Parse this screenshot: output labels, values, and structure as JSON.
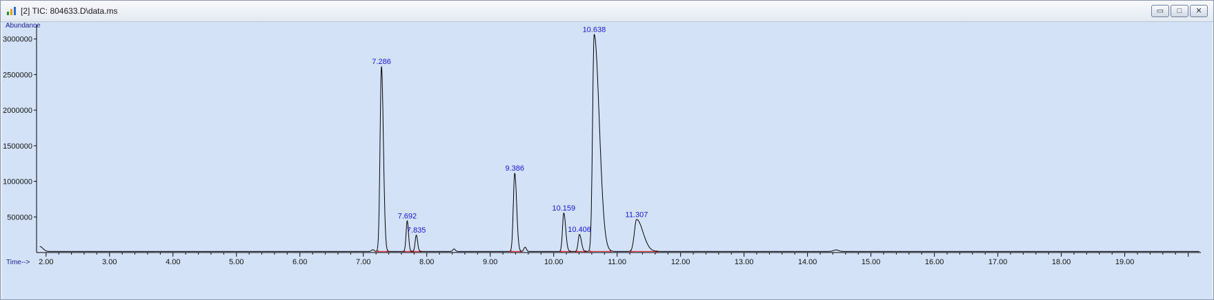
{
  "window": {
    "title": "[2] TIC: 804633.D\\data.ms",
    "buttons": {
      "minimize": "▭",
      "restore": "□",
      "close": "✕"
    }
  },
  "chart_data": {
    "type": "line",
    "ylabel": "Abundance",
    "xlabel": "Time-->",
    "xlim": [
      1.85,
      20.2
    ],
    "ylim": [
      0,
      3200000
    ],
    "x_ticks": [
      2.0,
      3.0,
      4.0,
      5.0,
      6.0,
      7.0,
      8.0,
      9.0,
      10.0,
      11.0,
      12.0,
      13.0,
      14.0,
      15.0,
      16.0,
      17.0,
      18.0,
      19.0
    ],
    "x_tick_labels": [
      "2.00",
      "3.00",
      "4.00",
      "5.00",
      "6.00",
      "7.00",
      "8.00",
      "9.00",
      "10.00",
      "11.00",
      "12.00",
      "13.00",
      "14.00",
      "15.00",
      "16.00",
      "17.00",
      "18.00",
      "19.00"
    ],
    "y_ticks": [
      500000,
      1000000,
      1500000,
      2000000,
      2500000,
      3000000
    ],
    "y_tick_labels": [
      "500000",
      "1000000",
      "1500000",
      "2000000",
      "2500000",
      "3000000"
    ],
    "peaks": [
      {
        "rt": 7.286,
        "label": "7.286",
        "height": 2600000,
        "width": 0.022,
        "tail": 0.03
      },
      {
        "rt": 7.692,
        "label": "7.692",
        "height": 430000,
        "width": 0.018,
        "tail": 0.02
      },
      {
        "rt": 7.835,
        "label": "7.835",
        "height": 230000,
        "width": 0.018,
        "tail": 0.02
      },
      {
        "rt": 9.386,
        "label": "9.386",
        "height": 1100000,
        "width": 0.022,
        "tail": 0.03
      },
      {
        "rt": 10.159,
        "label": "10.159",
        "height": 540000,
        "width": 0.02,
        "tail": 0.03
      },
      {
        "rt": 10.406,
        "label": "10.406",
        "height": 240000,
        "width": 0.02,
        "tail": 0.03
      },
      {
        "rt": 10.638,
        "label": "10.638",
        "height": 3050000,
        "width": 0.025,
        "tail": 0.08
      },
      {
        "rt": 11.307,
        "label": "11.307",
        "height": 450000,
        "width": 0.035,
        "tail": 0.1
      }
    ],
    "minor_peaks": [
      {
        "rt": 1.9,
        "height": 70000,
        "width": 0.05
      },
      {
        "rt": 7.15,
        "height": 25000,
        "width": 0.02
      },
      {
        "rt": 8.43,
        "height": 35000,
        "width": 0.02
      },
      {
        "rt": 9.55,
        "height": 60000,
        "width": 0.02
      },
      {
        "rt": 14.45,
        "height": 22000,
        "width": 0.04
      }
    ],
    "baseline": 15000,
    "colors": {
      "trace": "#000000",
      "integration": "#e0303a",
      "labels": "#1515d0",
      "background": "#d4e2f8"
    }
  }
}
